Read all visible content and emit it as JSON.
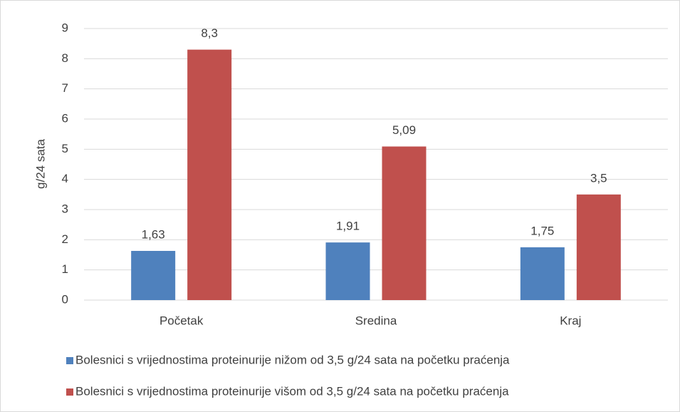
{
  "chart_data": {
    "type": "bar",
    "ylabel": "g/24 sata",
    "categories": [
      "Početak",
      "Sredina",
      "Kraj"
    ],
    "series": [
      {
        "name": "Bolesnici s vrijednostima proteinurije nižom od 3,5 g/24 sata na početku praćenja",
        "color": "#4f81bd",
        "values": [
          1.63,
          1.91,
          1.75
        ],
        "value_labels": [
          "1,63",
          "1,91",
          "1,75"
        ]
      },
      {
        "name": "Bolesnici s vrijednostima proteinurije višom od 3,5 g/24 sata na početku praćenja",
        "color": "#c0504d",
        "values": [
          8.3,
          5.09,
          3.5
        ],
        "value_labels": [
          "8,3",
          "5,09",
          "3,5"
        ]
      }
    ],
    "ylim": [
      0,
      9
    ],
    "yticks": [
      0,
      1,
      2,
      3,
      4,
      5,
      6,
      7,
      8,
      9
    ],
    "grid": true,
    "legend": "bottom"
  }
}
